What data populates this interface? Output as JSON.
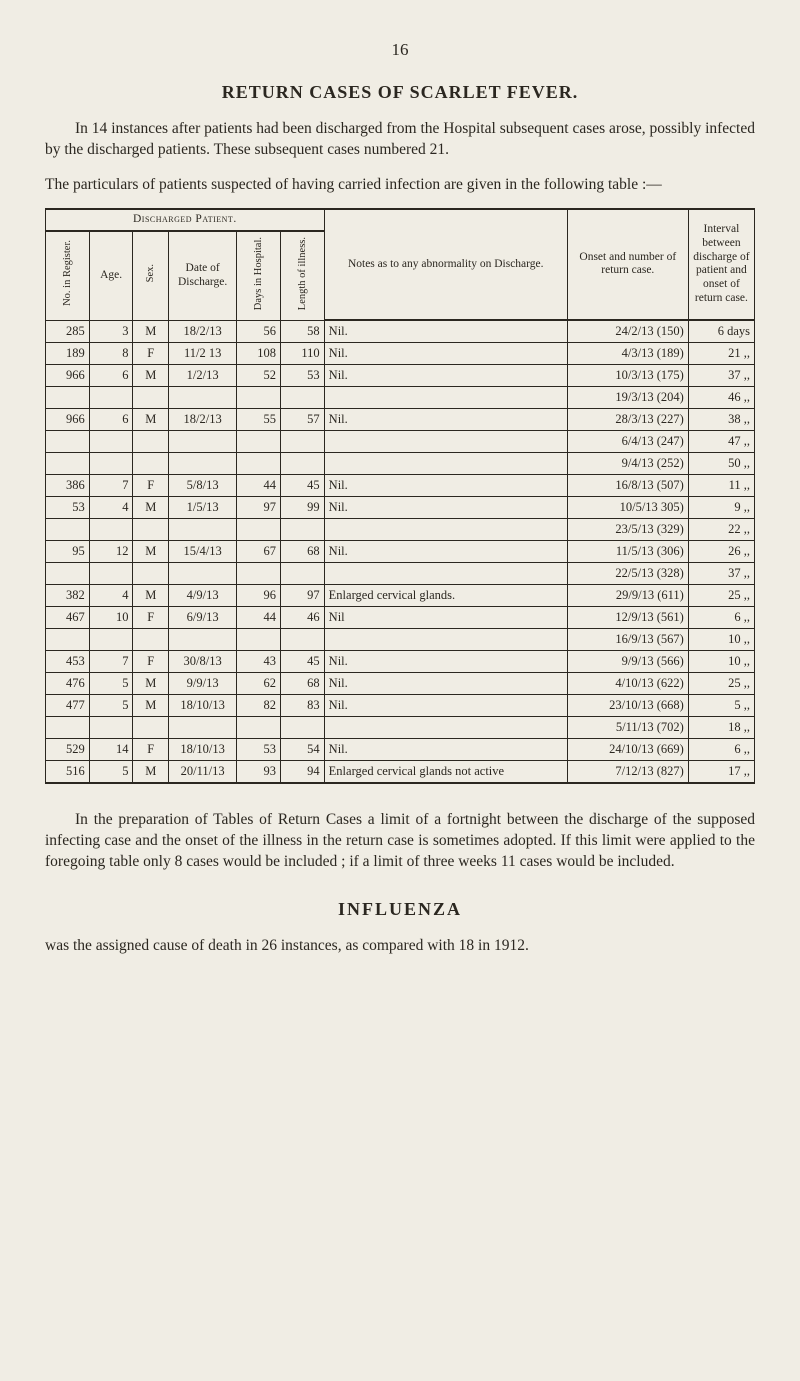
{
  "page_number": "16",
  "title": "RETURN CASES OF SCARLET FEVER.",
  "intro_para": "In 14 instances after patients had been discharged from the Hospital subsequent cases arose, possibly infected by the discharged patients. These subsequent cases numbered 21.",
  "table_intro": "The particulars of patients suspected of having carried infection are given in the following table :—",
  "columns": {
    "group": "Discharged Patient.",
    "no": "No. in Register.",
    "age": "Age.",
    "sex": "Sex.",
    "date": "Date of Discharge.",
    "days": "Days in Hospital.",
    "length": "Length of illness.",
    "notes": "Notes as to any abnormality on Discharge.",
    "onset": "Onset and number of return case.",
    "interval": "Interval between discharge of patient and onset of return case."
  },
  "rows": [
    {
      "no": "285",
      "age": "3",
      "sex": "M",
      "date": "18/2/13",
      "days": "56",
      "len": "58",
      "notes": "Nil.",
      "onset": "24/2/13 (150)",
      "int": "6 days"
    },
    {
      "no": "189",
      "age": "8",
      "sex": "F",
      "date": "11/2 13",
      "days": "108",
      "len": "110",
      "notes": "Nil.",
      "onset": "4/3/13 (189)",
      "int": "21  ,,"
    },
    {
      "no": "966",
      "age": "6",
      "sex": "M",
      "date": "1/2/13",
      "days": "52",
      "len": "53",
      "notes": "Nil.",
      "onset": "10/3/13 (175)",
      "int": "37  ,,"
    },
    {
      "no": "",
      "age": "",
      "sex": "",
      "date": "",
      "days": "",
      "len": "",
      "notes": "",
      "onset": "19/3/13 (204)",
      "int": "46  ,,"
    },
    {
      "no": "966",
      "age": "6",
      "sex": "M",
      "date": "18/2/13",
      "days": "55",
      "len": "57",
      "notes": "Nil.",
      "onset": "28/3/13 (227)",
      "int": "38  ,,"
    },
    {
      "no": "",
      "age": "",
      "sex": "",
      "date": "",
      "days": "",
      "len": "",
      "notes": "",
      "onset": "6/4/13 (247)",
      "int": "47  ,,"
    },
    {
      "no": "",
      "age": "",
      "sex": "",
      "date": "",
      "days": "",
      "len": "",
      "notes": "",
      "onset": "9/4/13 (252)",
      "int": "50  ,,"
    },
    {
      "no": "386",
      "age": "7",
      "sex": "F",
      "date": "5/8/13",
      "days": "44",
      "len": "45",
      "notes": "Nil.",
      "onset": "16/8/13 (507)",
      "int": "11  ,,"
    },
    {
      "no": "53",
      "age": "4",
      "sex": "M",
      "date": "1/5/13",
      "days": "97",
      "len": "99",
      "notes": "Nil.",
      "onset": "10/5/13 305)",
      "int": "9   ,,"
    },
    {
      "no": "",
      "age": "",
      "sex": "",
      "date": "",
      "days": "",
      "len": "",
      "notes": "",
      "onset": "23/5/13 (329)",
      "int": "22  ,,"
    },
    {
      "no": "95",
      "age": "12",
      "sex": "M",
      "date": "15/4/13",
      "days": "67",
      "len": "68",
      "notes": "Nil.",
      "onset": "11/5/13 (306)",
      "int": "26  ,,"
    },
    {
      "no": "",
      "age": "",
      "sex": "",
      "date": "",
      "days": "",
      "len": "",
      "notes": "",
      "onset": "22/5/13 (328)",
      "int": "37  ,,"
    },
    {
      "no": "382",
      "age": "4",
      "sex": "M",
      "date": "4/9/13",
      "days": "96",
      "len": "97",
      "notes": "Enlarged cervical glands.",
      "onset": "29/9/13 (611)",
      "int": "25  ,,"
    },
    {
      "no": "467",
      "age": "10",
      "sex": "F",
      "date": "6/9/13",
      "days": "44",
      "len": "46",
      "notes": "Nil",
      "onset": "12/9/13 (561)",
      "int": "6   ,,"
    },
    {
      "no": "",
      "age": "",
      "sex": "",
      "date": "",
      "days": "",
      "len": "",
      "notes": "",
      "onset": "16/9/13 (567)",
      "int": "10  ,,"
    },
    {
      "no": "453",
      "age": "7",
      "sex": "F",
      "date": "30/8/13",
      "days": "43",
      "len": "45",
      "notes": "Nil.",
      "onset": "9/9/13 (566)",
      "int": "10  ,,"
    },
    {
      "no": "476",
      "age": "5",
      "sex": "M",
      "date": "9/9/13",
      "days": "62",
      "len": "68",
      "notes": "Nil.",
      "onset": "4/10/13 (622)",
      "int": "25  ,,"
    },
    {
      "no": "477",
      "age": "5",
      "sex": "M",
      "date": "18/10/13",
      "days": "82",
      "len": "83",
      "notes": "Nil.",
      "onset": "23/10/13 (668)",
      "int": "5   ,,"
    },
    {
      "no": "",
      "age": "",
      "sex": "",
      "date": "",
      "days": "",
      "len": "",
      "notes": "",
      "onset": "5/11/13 (702)",
      "int": "18  ,,"
    },
    {
      "no": "529",
      "age": "14",
      "sex": "F",
      "date": "18/10/13",
      "days": "53",
      "len": "54",
      "notes": "Nil.",
      "onset": "24/10/13 (669)",
      "int": "6   ,,"
    },
    {
      "no": "516",
      "age": "5",
      "sex": "M",
      "date": "20/11/13",
      "days": "93",
      "len": "94",
      "notes": "Enlarged cervical glands not active",
      "onset": "7/12/13 (827)",
      "int": "17  ,,"
    }
  ],
  "after_table_para": "In the preparation of Tables of Return Cases a limit of a fortnight between the discharge of the supposed infecting case and the onset of the illness in the return case is sometimes adopted. If this limit were applied to the foregoing table only 8 cases would be included ; if a limit of three weeks 11 cases would be included.",
  "influenza_title": "INFLUENZA",
  "influenza_para": "was the assigned cause of death in 26 instances, as compared with 18 in 1912.",
  "style": {
    "background_color": "#f0ede4",
    "text_color": "#2b2720",
    "rule_color": "#2b2720",
    "body_font_size_pt": 12,
    "title_font_size_pt": 14,
    "table_font_size_pt": 10
  }
}
